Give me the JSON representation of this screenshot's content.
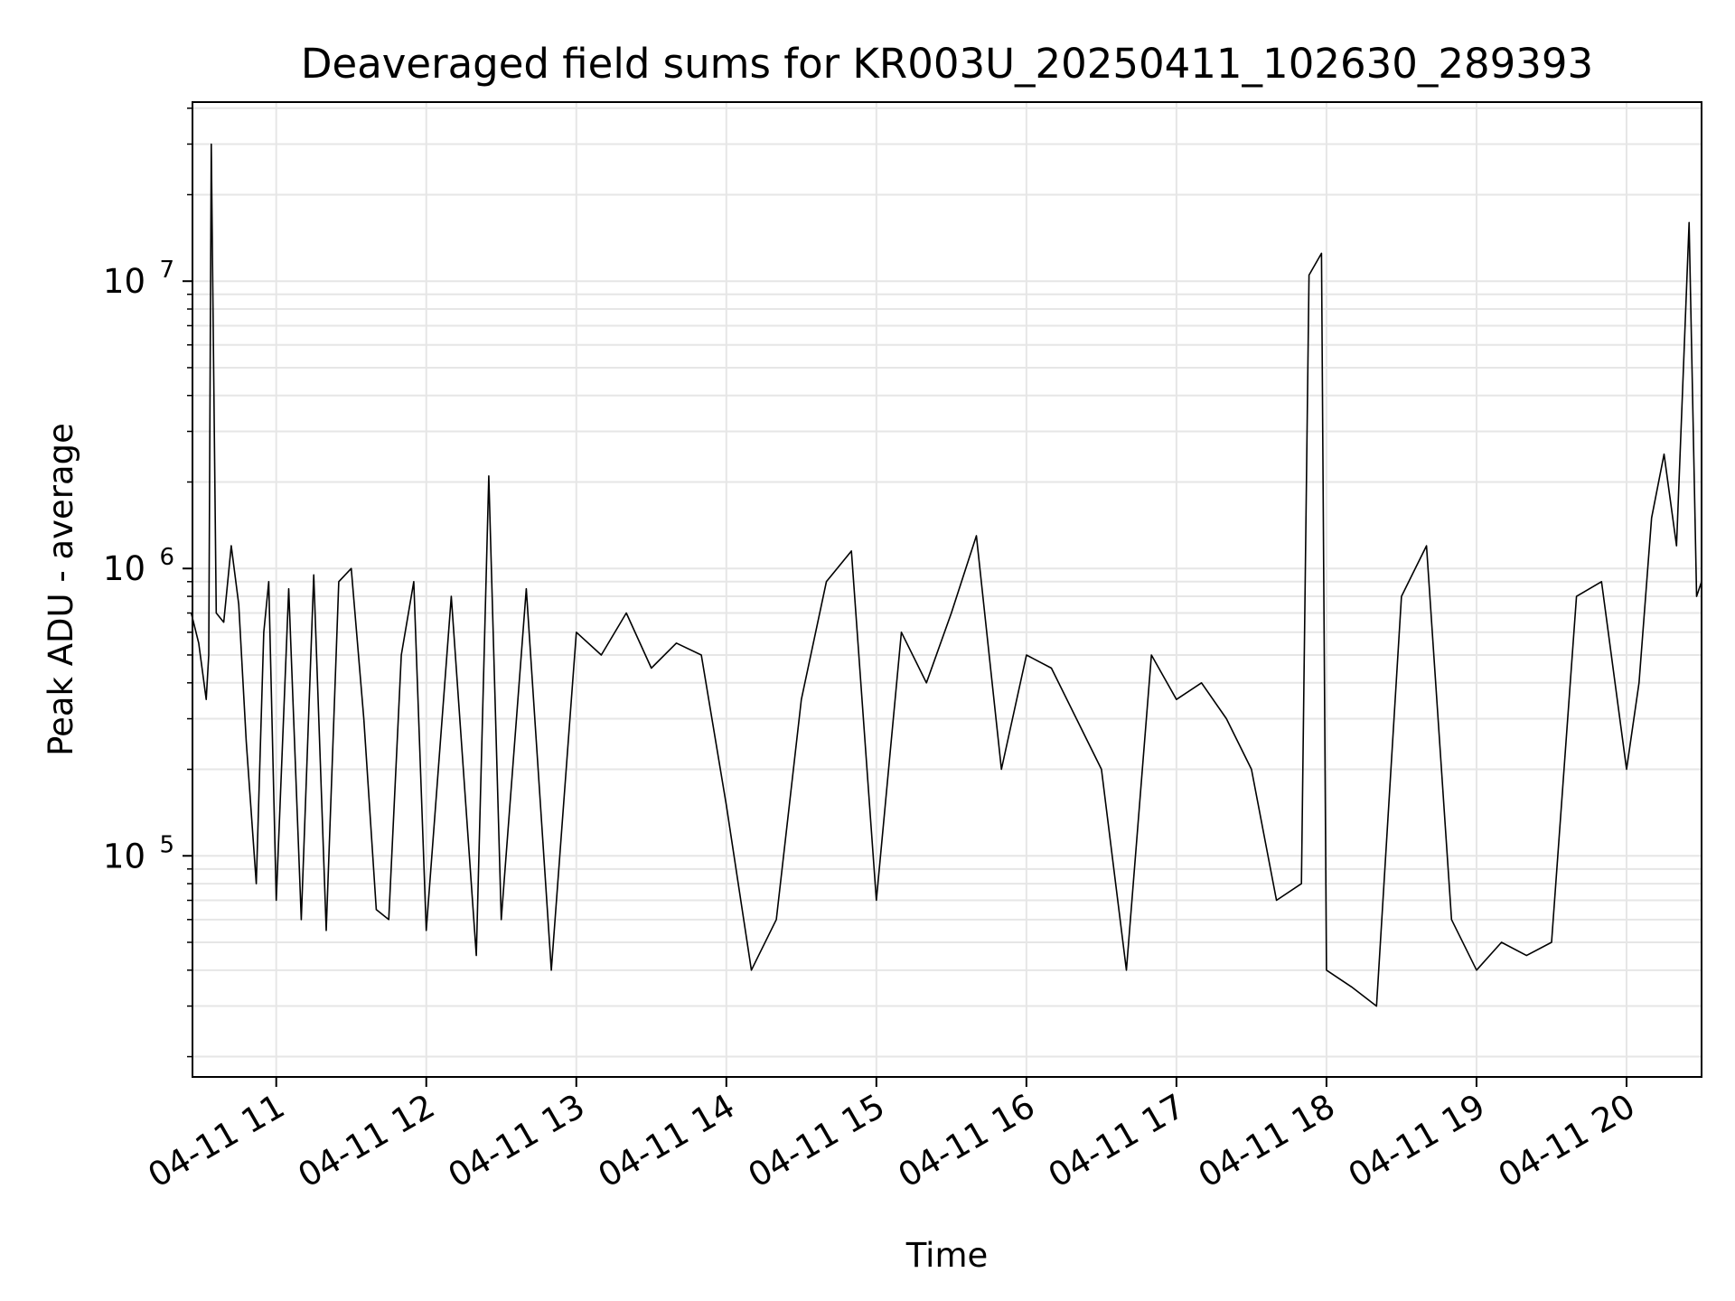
{
  "chart_data": {
    "type": "line",
    "title": "Deaveraged field sums for KR003U_20250411_102630_289393",
    "xlabel": "Time",
    "ylabel": "Peak ADU - average",
    "yscale": "log",
    "ylim": [
      17000,
      42000000
    ],
    "xlim": [
      "2025-04-11 10:26:30",
      "2025-04-11 20:30:00"
    ],
    "grid": true,
    "line_color": "#000000",
    "x_ticks": [
      {
        "value": "2025-04-11 11:00",
        "label": "04-11 11"
      },
      {
        "value": "2025-04-11 12:00",
        "label": "04-11 12"
      },
      {
        "value": "2025-04-11 13:00",
        "label": "04-11 13"
      },
      {
        "value": "2025-04-11 14:00",
        "label": "04-11 14"
      },
      {
        "value": "2025-04-11 15:00",
        "label": "04-11 15"
      },
      {
        "value": "2025-04-11 16:00",
        "label": "04-11 16"
      },
      {
        "value": "2025-04-11 17:00",
        "label": "04-11 17"
      },
      {
        "value": "2025-04-11 18:00",
        "label": "04-11 18"
      },
      {
        "value": "2025-04-11 19:00",
        "label": "04-11 19"
      },
      {
        "value": "2025-04-11 20:00",
        "label": "04-11 20"
      }
    ],
    "y_ticks": [
      {
        "value": 100000,
        "base": "10",
        "exp": "5"
      },
      {
        "value": 1000000,
        "base": "10",
        "exp": "6"
      },
      {
        "value": 10000000,
        "base": "10",
        "exp": "7"
      }
    ],
    "series": [
      {
        "x": [
          "2025-04-11 10:26",
          "2025-04-11 10:29",
          "2025-04-11 10:32",
          "2025-04-11 10:33",
          "2025-04-11 10:34",
          "2025-04-11 10:36",
          "2025-04-11 10:39",
          "2025-04-11 10:42",
          "2025-04-11 10:45",
          "2025-04-11 10:48",
          "2025-04-11 10:52",
          "2025-04-11 10:55",
          "2025-04-11 10:57",
          "2025-04-11 11:00",
          "2025-04-11 11:05",
          "2025-04-11 11:10",
          "2025-04-11 11:15",
          "2025-04-11 11:20",
          "2025-04-11 11:25",
          "2025-04-11 11:30",
          "2025-04-11 11:35",
          "2025-04-11 11:40",
          "2025-04-11 11:45",
          "2025-04-11 11:50",
          "2025-04-11 11:55",
          "2025-04-11 12:00",
          "2025-04-11 12:10",
          "2025-04-11 12:20",
          "2025-04-11 12:25",
          "2025-04-11 12:30",
          "2025-04-11 12:40",
          "2025-04-11 12:50",
          "2025-04-11 13:00",
          "2025-04-11 13:10",
          "2025-04-11 13:20",
          "2025-04-11 13:30",
          "2025-04-11 13:40",
          "2025-04-11 13:50",
          "2025-04-11 14:00",
          "2025-04-11 14:10",
          "2025-04-11 14:20",
          "2025-04-11 14:30",
          "2025-04-11 14:40",
          "2025-04-11 14:50",
          "2025-04-11 15:00",
          "2025-04-11 15:10",
          "2025-04-11 15:20",
          "2025-04-11 15:30",
          "2025-04-11 15:40",
          "2025-04-11 15:50",
          "2025-04-11 16:00",
          "2025-04-11 16:10",
          "2025-04-11 16:20",
          "2025-04-11 16:30",
          "2025-04-11 16:40",
          "2025-04-11 16:50",
          "2025-04-11 17:00",
          "2025-04-11 17:10",
          "2025-04-11 17:20",
          "2025-04-11 17:30",
          "2025-04-11 17:40",
          "2025-04-11 17:50",
          "2025-04-11 17:53",
          "2025-04-11 17:58",
          "2025-04-11 18:00",
          "2025-04-11 18:10",
          "2025-04-11 18:20",
          "2025-04-11 18:30",
          "2025-04-11 18:40",
          "2025-04-11 18:50",
          "2025-04-11 19:00",
          "2025-04-11 19:10",
          "2025-04-11 19:20",
          "2025-04-11 19:30",
          "2025-04-11 19:40",
          "2025-04-11 19:50",
          "2025-04-11 20:00",
          "2025-04-11 20:05",
          "2025-04-11 20:10",
          "2025-04-11 20:15",
          "2025-04-11 20:20",
          "2025-04-11 20:25",
          "2025-04-11 20:28",
          "2025-04-11 20:30"
        ],
        "y": [
          700000,
          550000,
          350000,
          500000,
          30000000,
          700000,
          650000,
          1200000,
          750000,
          250000,
          80000,
          600000,
          900000,
          70000,
          850000,
          60000,
          950000,
          55000,
          900000,
          1000000,
          300000,
          65000,
          60000,
          500000,
          900000,
          55000,
          800000,
          45000,
          2100000,
          60000,
          850000,
          40000,
          600000,
          500000,
          700000,
          450000,
          550000,
          500000,
          150000,
          40000,
          60000,
          350000,
          900000,
          1150000,
          70000,
          600000,
          400000,
          700000,
          1300000,
          200000,
          500000,
          450000,
          300000,
          200000,
          40000,
          500000,
          350000,
          400000,
          300000,
          200000,
          70000,
          80000,
          10500000,
          12500000,
          40000,
          35000,
          30000,
          800000,
          1200000,
          60000,
          40000,
          50000,
          45000,
          50000,
          800000,
          900000,
          200000,
          400000,
          1500000,
          2500000,
          1200000,
          16000000,
          800000,
          900000
        ]
      }
    ]
  }
}
